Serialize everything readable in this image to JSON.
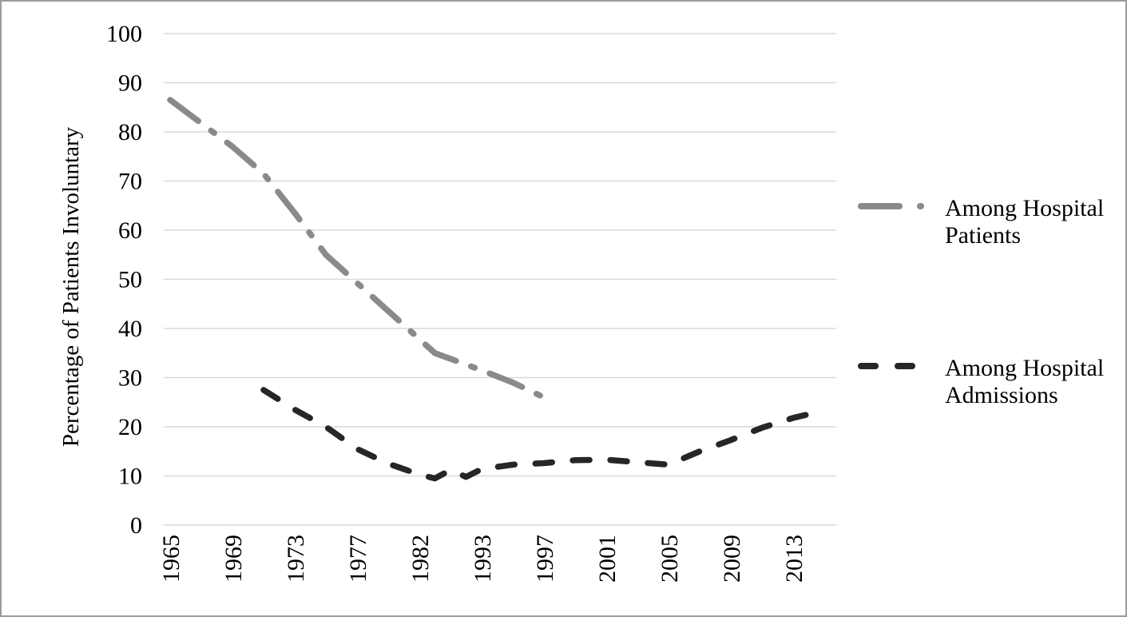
{
  "figure": {
    "background": "#ffffff",
    "border_color": "#9c9c9c"
  },
  "chart_data": {
    "type": "line",
    "title": "",
    "xlabel": "",
    "ylabel": "Percentage of Patients Involuntary",
    "ylim": [
      0,
      100
    ],
    "yticks": [
      0,
      10,
      20,
      30,
      40,
      50,
      60,
      70,
      80,
      90,
      100
    ],
    "categories": [
      "1965",
      "1969",
      "1973",
      "1977",
      "1982",
      "1993",
      "1997",
      "2001",
      "2005",
      "2009",
      "2013"
    ],
    "grid": "horizontal gridlines",
    "gridline_color": "#d9d9d9",
    "legend_position": "right",
    "series": [
      {
        "name": "Among Hospital Patients",
        "color": "#8a8a8a",
        "dash_style": "long-dash-dot",
        "dasharray": "44 20 5 20",
        "marker_dasharray": "48 26 1 28",
        "points": [
          {
            "i": 0,
            "year": 1965,
            "value": 86.5
          },
          {
            "i": 2,
            "year": 1969,
            "value": 77
          },
          {
            "i": 3,
            "year": 1971,
            "value": 71.5
          },
          {
            "i": 4,
            "year": 1973,
            "value": 63.5
          },
          {
            "i": 5,
            "year": 1975,
            "value": 55
          },
          {
            "i": 8.5,
            "year": 1984,
            "value": 35
          },
          {
            "i": 10,
            "year": 1993,
            "value": 31.5
          },
          {
            "i": 11,
            "year": 1995,
            "value": 29
          },
          {
            "i": 12,
            "year": 1997,
            "value": 26
          }
        ]
      },
      {
        "name": "Among Hospital Admissions",
        "color": "#262626",
        "dash_style": "dash",
        "dasharray": "21 26",
        "marker_dasharray": "18 28",
        "points": [
          {
            "i": 3,
            "year": 1971,
            "value": 27.5
          },
          {
            "i": 4,
            "year": 1973,
            "value": 23.5
          },
          {
            "i": 5,
            "year": 1975,
            "value": 20
          },
          {
            "i": 6,
            "year": 1977,
            "value": 15.5
          },
          {
            "i": 7,
            "year": 1980,
            "value": 12.5
          },
          {
            "i": 8,
            "year": 1982,
            "value": 10.3
          },
          {
            "i": 8.5,
            "year": 1984,
            "value": 9.5
          },
          {
            "i": 9,
            "year": 1986,
            "value": 11.2
          },
          {
            "i": 9.5,
            "year": 1988,
            "value": 9.8
          },
          {
            "i": 10,
            "year": 1993,
            "value": 11.4
          },
          {
            "i": 11,
            "year": 1995,
            "value": 12.3
          },
          {
            "i": 12,
            "year": 1997,
            "value": 12.6
          },
          {
            "i": 13,
            "year": 1999,
            "value": 13.2
          },
          {
            "i": 14,
            "year": 2001,
            "value": 13.3
          },
          {
            "i": 15,
            "year": 2003,
            "value": 12.8
          },
          {
            "i": 16,
            "year": 2005,
            "value": 12.3
          },
          {
            "i": 17,
            "year": 2007,
            "value": 15.0
          },
          {
            "i": 18,
            "year": 2009,
            "value": 17.3
          },
          {
            "i": 19,
            "year": 2011,
            "value": 19.8
          },
          {
            "i": 20,
            "year": 2013,
            "value": 21.8
          },
          {
            "i": 21,
            "year": 2015,
            "value": 23.3
          }
        ]
      }
    ]
  }
}
